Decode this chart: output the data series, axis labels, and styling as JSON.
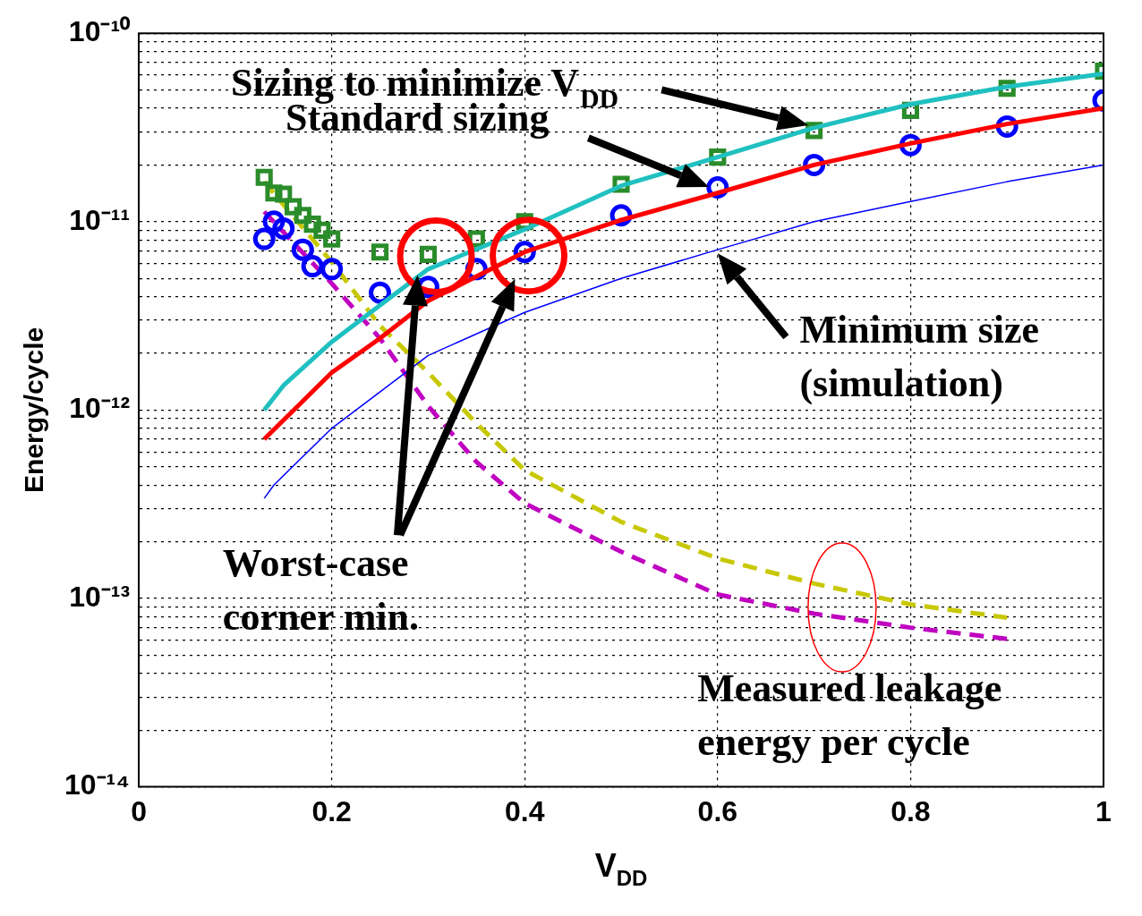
{
  "chart_data": {
    "type": "line",
    "xlabel": "V$_{DD}$",
    "ylabel": "Energy/cycle",
    "log": "y",
    "grid": true,
    "legend": false,
    "xlim": [
      0,
      1
    ],
    "xticks": [
      0,
      0.2,
      0.4,
      0.6,
      0.8,
      1
    ],
    "ylim": [
      1e-14,
      1e-10
    ],
    "yticks": [
      {
        "value": 1e-14,
        "label": "10⁻¹⁴"
      },
      {
        "value": 2e-14,
        "label": null
      },
      {
        "value": 3e-14,
        "label": null
      },
      {
        "value": 4e-14,
        "label": null
      },
      {
        "value": 5e-14,
        "label": null
      },
      {
        "value": 6e-14,
        "label": null
      },
      {
        "value": 7e-14,
        "label": null
      },
      {
        "value": 8e-14,
        "label": null
      },
      {
        "value": 9e-14,
        "label": null
      },
      {
        "value": 1e-13,
        "label": "10⁻¹³"
      },
      {
        "value": 2e-13,
        "label": null
      },
      {
        "value": 3e-13,
        "label": null
      },
      {
        "value": 4e-13,
        "label": null
      },
      {
        "value": 5e-13,
        "label": null
      },
      {
        "value": 6e-13,
        "label": null
      },
      {
        "value": 7e-13,
        "label": null
      },
      {
        "value": 8e-13,
        "label": null
      },
      {
        "value": 9e-13,
        "label": null
      },
      {
        "value": 1e-12,
        "label": "10⁻¹²"
      },
      {
        "value": 2e-12,
        "label": null
      },
      {
        "value": 3e-12,
        "label": null
      },
      {
        "value": 4e-12,
        "label": null
      },
      {
        "value": 5e-12,
        "label": null
      },
      {
        "value": 6e-12,
        "label": null
      },
      {
        "value": 7e-12,
        "label": null
      },
      {
        "value": 8e-12,
        "label": null
      },
      {
        "value": 9e-12,
        "label": null
      },
      {
        "value": 1e-11,
        "label": "10⁻¹¹"
      },
      {
        "value": 2e-11,
        "label": null
      },
      {
        "value": 3e-11,
        "label": null
      },
      {
        "value": 4e-11,
        "label": null
      },
      {
        "value": 5e-11,
        "label": null
      },
      {
        "value": 6e-11,
        "label": null
      },
      {
        "value": 7e-11,
        "label": null
      },
      {
        "value": 8e-11,
        "label": null
      },
      {
        "value": 9e-11,
        "label": null
      },
      {
        "value": 1e-10,
        "label": "10⁻¹⁰"
      }
    ],
    "series": [
      {
        "color": "#20c0c0",
        "marker": "none",
        "line_style": "solid",
        "x": [
          0.13,
          0.15,
          0.2,
          0.25,
          0.3,
          0.4,
          0.5,
          0.6,
          0.7,
          0.8,
          0.9,
          1.0
        ],
        "values": [
          1e-12,
          1.35e-12,
          2.3e-12,
          3.6e-12,
          5.6e-12,
          9.1e-12,
          1.55e-11,
          2.2e-11,
          3.15e-11,
          4.2e-11,
          5.2e-11,
          6.1e-11
        ]
      },
      {
        "color": "#ff0000",
        "marker": "none",
        "line_style": "solid",
        "x": [
          0.13,
          0.2,
          0.25,
          0.3,
          0.4,
          0.5,
          0.6,
          0.7,
          0.8,
          0.9,
          1.0
        ],
        "values": [
          7e-13,
          1.58e-12,
          2.4e-12,
          3.8e-12,
          6.9e-12,
          1.02e-11,
          1.42e-11,
          2e-11,
          2.6e-11,
          3.3e-11,
          4e-11
        ]
      },
      {
        "color": "#0000ff",
        "marker": "none",
        "line_style": "solid",
        "x": [
          0.13,
          0.14,
          0.2,
          0.3,
          0.4,
          0.5,
          0.6,
          0.7,
          0.8,
          0.9,
          1.0
        ],
        "values": [
          3.4e-13,
          4e-13,
          8e-13,
          1.95e-12,
          3.3e-12,
          5e-12,
          7.1e-12,
          1e-11,
          1.28e-11,
          1.63e-11,
          2e-11
        ]
      },
      {
        "type": "scatter",
        "color": "#2a8c2a",
        "marker": "square",
        "x": [
          0.13,
          0.14,
          0.15,
          0.16,
          0.17,
          0.18,
          0.19,
          0.2,
          0.25,
          0.3,
          0.35,
          0.4,
          0.5,
          0.6,
          0.7,
          0.8,
          0.9,
          1.0
        ],
        "values": [
          1.72e-11,
          1.42e-11,
          1.4e-11,
          1.2e-11,
          1.08e-11,
          9.7e-12,
          9e-12,
          8.1e-12,
          6.9e-12,
          6.7e-12,
          8.1e-12,
          1e-11,
          1.58e-11,
          2.2e-11,
          3.05e-11,
          3.9e-11,
          5.1e-11,
          6.3e-11
        ]
      },
      {
        "type": "scatter",
        "color": "#0000ff",
        "marker": "circle",
        "x": [
          0.13,
          0.14,
          0.15,
          0.17,
          0.18,
          0.2,
          0.25,
          0.3,
          0.35,
          0.4,
          0.5,
          0.6,
          0.7,
          0.8,
          0.9,
          1.0
        ],
        "values": [
          8.1e-12,
          1e-11,
          9.2e-12,
          7.1e-12,
          5.8e-12,
          5.6e-12,
          4.2e-12,
          4.5e-12,
          5.6e-12,
          6.9e-12,
          1.08e-11,
          1.52e-11,
          2e-11,
          2.55e-11,
          3.2e-11,
          4.4e-11
        ]
      },
      {
        "color": "#c8c800",
        "marker": "none",
        "line_style": "dashed",
        "x": [
          0.13,
          0.2,
          0.25,
          0.3,
          0.35,
          0.4,
          0.5,
          0.6,
          0.7,
          0.8,
          0.9
        ],
        "values": [
          1.63e-11,
          6.1e-12,
          2.8e-12,
          1.58e-12,
          8.5e-13,
          4.8e-13,
          2.55e-13,
          1.63e-13,
          1.2e-13,
          9.3e-14,
          7.9e-14
        ]
      },
      {
        "color": "#c000c0",
        "marker": "none",
        "line_style": "dashed",
        "x": [
          0.13,
          0.2,
          0.25,
          0.3,
          0.35,
          0.4,
          0.5,
          0.6,
          0.7,
          0.8,
          0.9
        ],
        "values": [
          1.13e-11,
          4.7e-12,
          2.4e-12,
          1.05e-12,
          5.3e-13,
          3.2e-13,
          1.77e-13,
          1.05e-13,
          8.3e-14,
          7e-14,
          6.1e-14
        ]
      }
    ],
    "annotations": [
      "Sizing to minimize V$_{DD}$",
      "Standard sizing",
      "Minimum size\n(simulation)",
      "Worst-case\ncorner min.",
      "Measured leakage\nenergy per cycle"
    ]
  }
}
